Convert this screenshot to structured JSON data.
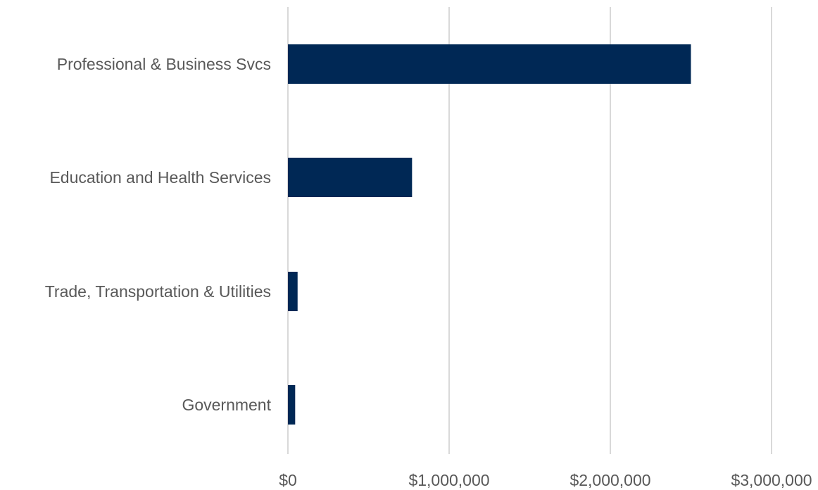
{
  "chart_data": {
    "type": "bar",
    "orientation": "horizontal",
    "title": "",
    "xlabel": "",
    "ylabel": "",
    "categories": [
      "Professional & Business Svcs",
      "Education and Health Services",
      "Trade, Transportation & Utilities",
      "Government"
    ],
    "values": [
      2500000,
      770000,
      60000,
      45000
    ],
    "xlim": [
      0,
      3000000
    ],
    "x_ticks": [
      0,
      1000000,
      2000000,
      3000000
    ],
    "x_tick_labels": [
      "$0",
      "$1,000,000",
      "$2,000,000",
      "$3,000,000"
    ],
    "grid": true,
    "legend": "none",
    "colors": {
      "bar": "#002855",
      "grid": "#d9d9d9",
      "text": "#595959"
    }
  }
}
